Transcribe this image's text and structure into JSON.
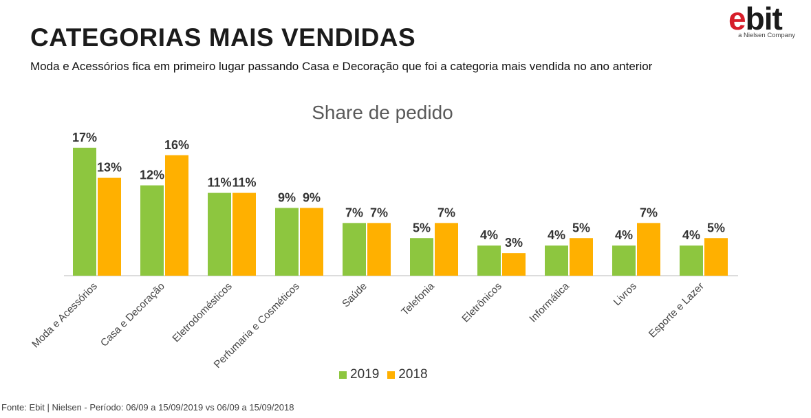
{
  "header": {
    "title": "CATEGORIAS MAIS VENDIDAS",
    "subtitle": "Moda e Acessórios fica em primeiro lugar passando Casa e Decoração que foi a categoria mais vendida no ano anterior"
  },
  "logo": {
    "mark_e": "e",
    "mark_rest": "bit",
    "tagline": "a Nielsen Company"
  },
  "footer": {
    "source": "Fonte: Ebit | Nielsen - Período: 06/09 a 15/09/2019 vs 06/09 a 15/09/2018"
  },
  "chart_data": {
    "type": "bar",
    "title": "Share de pedido",
    "categories": [
      "Moda e Acessórios",
      "Casa e Decoração",
      "Eletrodomésticos",
      "Perfumaria e Cosméticos",
      "Saúde",
      "Telefonia",
      "Eletrônicos",
      "Informática",
      "Livros",
      "Esporte e Lazer"
    ],
    "series": [
      {
        "name": "2019",
        "color": "#8dc63f",
        "values": [
          17,
          12,
          11,
          9,
          7,
          5,
          4,
          4,
          4,
          4
        ],
        "labels": [
          "17%",
          "12%",
          "11%",
          "9%",
          "7%",
          "5%",
          "4%",
          "4%",
          "4%",
          "4%"
        ]
      },
      {
        "name": "2018",
        "color": "#ffb000",
        "values": [
          13,
          16,
          11,
          9,
          7,
          7,
          3,
          5,
          7,
          5
        ],
        "labels": [
          "13%",
          "16%",
          "11%",
          "9%",
          "7%",
          "7%",
          "3%",
          "5%",
          "7%",
          "5%"
        ]
      }
    ],
    "value_unit": "%",
    "legend_position": "bottom",
    "grid": false,
    "xlabel": "",
    "ylabel": ""
  }
}
